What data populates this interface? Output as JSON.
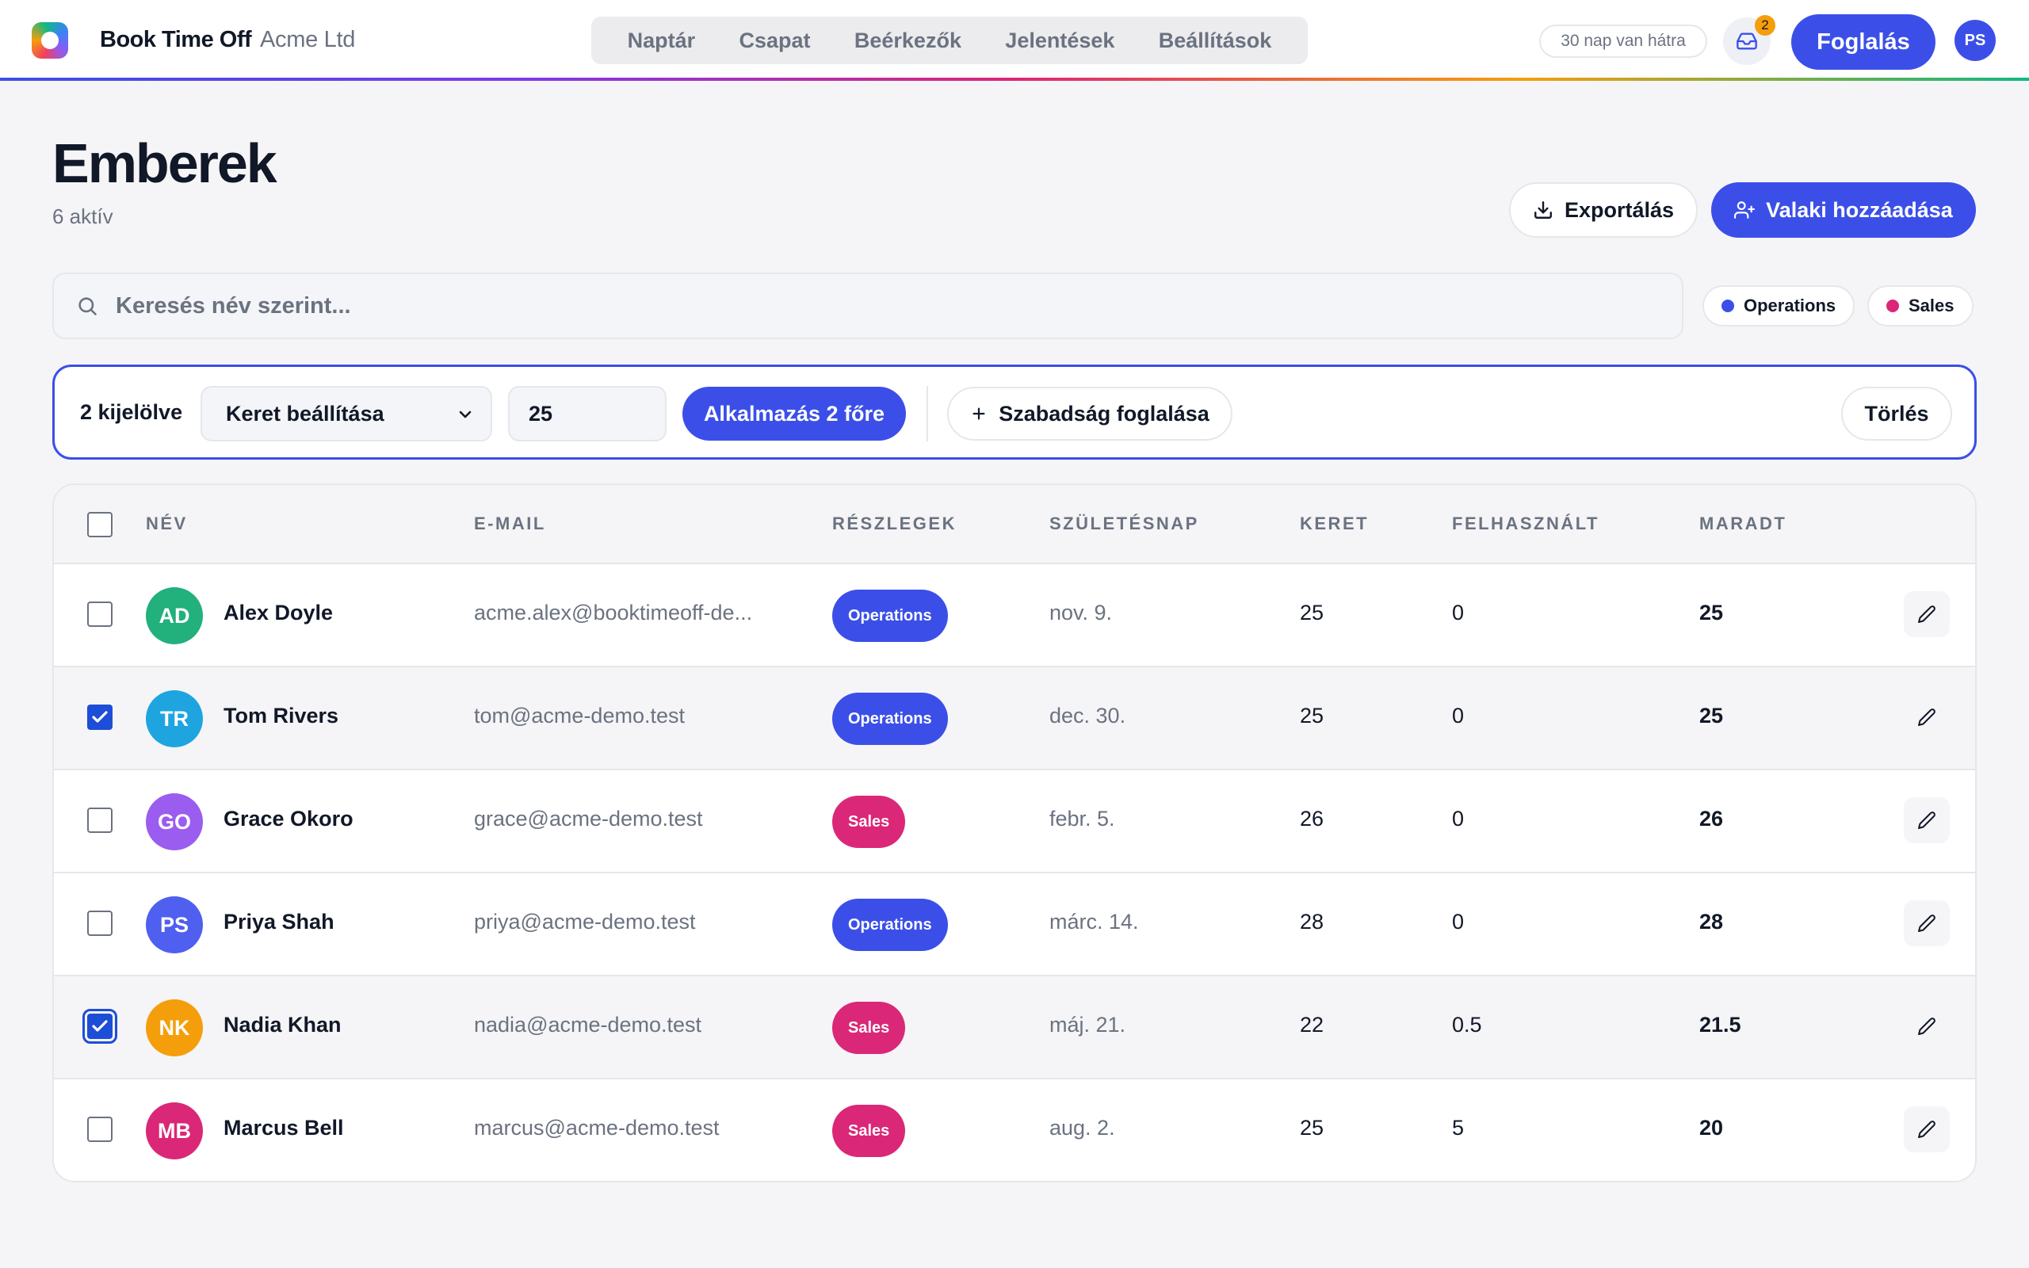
{
  "app": {
    "brand": "Book Time Off",
    "org": "Acme Ltd"
  },
  "nav": {
    "tabs": [
      {
        "label": "Naptár"
      },
      {
        "label": "Csapat"
      },
      {
        "label": "Beérkezők"
      },
      {
        "label": "Jelentések"
      },
      {
        "label": "Beállítások"
      }
    ],
    "trial_badge": "30 nap van hátra",
    "inbox_count": "2",
    "book_label": "Foglalás",
    "user_initials": "PS"
  },
  "page": {
    "title": "Emberek",
    "subtitle": "6 aktív",
    "export_label": "Exportálás",
    "add_label": "Valaki hozzáadása"
  },
  "search": {
    "placeholder": "Keresés név szerint...",
    "value": ""
  },
  "filters": [
    {
      "label": "Operations",
      "color": "#3b4fe8"
    },
    {
      "label": "Sales",
      "color": "#db2777"
    }
  ],
  "bulk": {
    "count_label": "2 kijelölve",
    "action_selected": "Keret beállítása",
    "value": "25",
    "apply_label": "Alkalmazás 2 főre",
    "leave_label": "Szabadság foglalása",
    "clear_label": "Törlés"
  },
  "table": {
    "headers": {
      "name": "NÉV",
      "email": "E-MAIL",
      "depts": "RÉSZLEGEK",
      "birthday": "SZÜLETÉSNAP",
      "quota": "KERET",
      "used": "FELHASZNÁLT",
      "remaining": "MARADT"
    },
    "rows": [
      {
        "initials": "AD",
        "avatar_color": "#22b07d",
        "name": "Alex Doyle",
        "email": "acme.alex@booktimeoff-de...",
        "dept": "Operations",
        "dept_color": "#3b4fe8",
        "birthday": "nov. 9.",
        "quota": "25",
        "used": "0",
        "remaining": "25",
        "checked": false
      },
      {
        "initials": "TR",
        "avatar_color": "#1ea5e0",
        "name": "Tom Rivers",
        "email": "tom@acme-demo.test",
        "dept": "Operations",
        "dept_color": "#3b4fe8",
        "birthday": "dec. 30.",
        "quota": "25",
        "used": "0",
        "remaining": "25",
        "checked": true
      },
      {
        "initials": "GO",
        "avatar_color": "#9b5cf0",
        "name": "Grace Okoro",
        "email": "grace@acme-demo.test",
        "dept": "Sales",
        "dept_color": "#db2777",
        "birthday": "febr. 5.",
        "quota": "26",
        "used": "0",
        "remaining": "26",
        "checked": false
      },
      {
        "initials": "PS",
        "avatar_color": "#4f5ff0",
        "name": "Priya Shah",
        "email": "priya@acme-demo.test",
        "dept": "Operations",
        "dept_color": "#3b4fe8",
        "birthday": "márc. 14.",
        "quota": "28",
        "used": "0",
        "remaining": "28",
        "checked": false
      },
      {
        "initials": "NK",
        "avatar_color": "#f59e0b",
        "name": "Nadia Khan",
        "email": "nadia@acme-demo.test",
        "dept": "Sales",
        "dept_color": "#db2777",
        "birthday": "máj. 21.",
        "quota": "22",
        "used": "0.5",
        "remaining": "21.5",
        "checked": true
      },
      {
        "initials": "MB",
        "avatar_color": "#db2777",
        "name": "Marcus Bell",
        "email": "marcus@acme-demo.test",
        "dept": "Sales",
        "dept_color": "#db2777",
        "birthday": "aug. 2.",
        "quota": "25",
        "used": "5",
        "remaining": "20",
        "checked": false
      }
    ]
  }
}
